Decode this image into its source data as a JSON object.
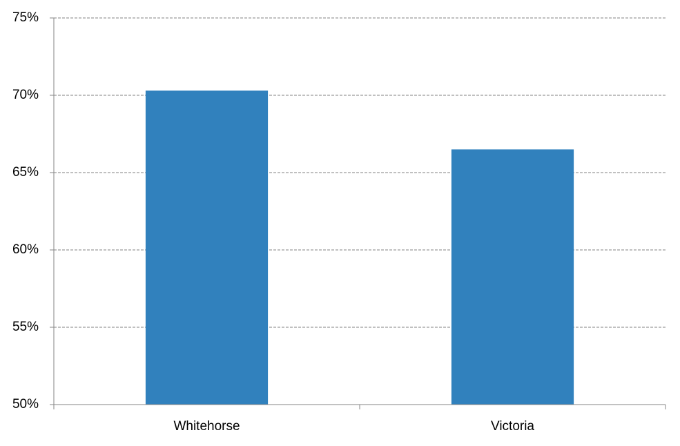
{
  "chart_data": {
    "type": "bar",
    "categories": [
      "Whitehorse",
      "Victoria"
    ],
    "values": [
      70.3,
      66.5
    ],
    "color": "#3181bd",
    "ylim": [
      50,
      75
    ],
    "yticks": [
      {
        "value": 50,
        "label": "50%"
      },
      {
        "value": 55,
        "label": "55%"
      },
      {
        "value": 60,
        "label": "60%"
      },
      {
        "value": 65,
        "label": "65%"
      },
      {
        "value": 70,
        "label": "70%"
      },
      {
        "value": 75,
        "label": "75%"
      }
    ],
    "grid": true
  }
}
